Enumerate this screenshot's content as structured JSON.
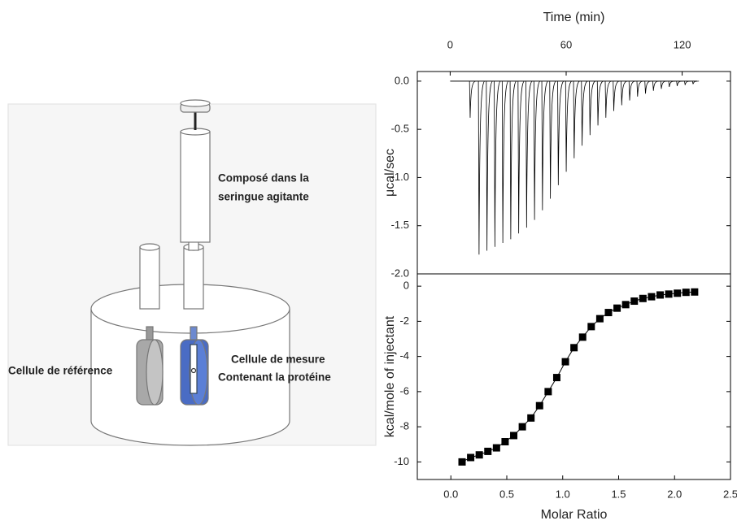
{
  "diagram": {
    "syringe_label": [
      "Composé dans la",
      "seringue agitante"
    ],
    "reference_label": "Cellule de référence",
    "sample_label": [
      "Cellule de mesure",
      "Contenant la protéine"
    ]
  },
  "chart_data": [
    {
      "type": "thermogram",
      "xlabel": "Time (min)",
      "ylabel": "μcal/sec",
      "color": "#000000",
      "x": [
        10,
        14.6,
        18.7,
        22.8,
        26.9,
        31.0,
        35.1,
        39.2,
        43.3,
        47.4,
        51.5,
        55.6,
        59.7,
        63.8,
        67.9,
        72.0,
        76.1,
        80.2,
        84.3,
        88.4,
        92.5,
        96.6,
        100.7,
        104.8,
        108.9,
        113.0,
        117.1,
        121.2,
        125.3
      ],
      "values": [
        -0.38,
        -1.8,
        -1.76,
        -1.72,
        -1.68,
        -1.64,
        -1.58,
        -1.52,
        -1.44,
        -1.34,
        -1.22,
        -1.08,
        -0.94,
        -0.8,
        -0.67,
        -0.56,
        -0.46,
        -0.38,
        -0.31,
        -0.25,
        -0.2,
        -0.16,
        -0.13,
        -0.1,
        -0.08,
        -0.06,
        -0.05,
        -0.04,
        -0.03
      ],
      "xlim": [
        -17,
        145
      ],
      "xticks": [
        0,
        60,
        120
      ],
      "ylim": [
        -2.0,
        0.1
      ],
      "yticks": [
        {
          "value": 0,
          "label": "0.0"
        },
        -0.5,
        {
          "value": -1,
          "label": "-1.0"
        },
        -1.5,
        {
          "value": -2,
          "label": "-2.0"
        }
      ]
    },
    {
      "type": "scatter",
      "xlabel": "Molar Ratio",
      "ylabel": "kcal/mole of injectant",
      "color": "#000000",
      "x": [
        0.1,
        0.177,
        0.254,
        0.331,
        0.408,
        0.485,
        0.562,
        0.639,
        0.716,
        0.793,
        0.87,
        0.947,
        1.024,
        1.101,
        1.178,
        1.255,
        1.332,
        1.409,
        1.486,
        1.563,
        1.64,
        1.717,
        1.794,
        1.871,
        1.948,
        2.025,
        2.102,
        2.179
      ],
      "values": [
        -10.0,
        -9.75,
        -9.6,
        -9.4,
        -9.2,
        -8.85,
        -8.5,
        -8.0,
        -7.5,
        -6.8,
        -6.0,
        -5.2,
        -4.3,
        -3.5,
        -2.9,
        -2.3,
        -1.85,
        -1.5,
        -1.25,
        -1.05,
        -0.85,
        -0.7,
        -0.6,
        -0.5,
        -0.45,
        -0.4,
        -0.35,
        -0.33
      ],
      "xlim": [
        -0.3,
        2.5
      ],
      "xticks": [
        {
          "value": 0,
          "label": "0.0"
        },
        0.5,
        {
          "value": 1,
          "label": "1.0"
        },
        1.5,
        {
          "value": 2,
          "label": "2.0"
        },
        2.5
      ],
      "ylim": [
        -11,
        0.7
      ],
      "yticks": [
        0,
        -2,
        -4,
        -6,
        -8,
        -10
      ]
    }
  ]
}
